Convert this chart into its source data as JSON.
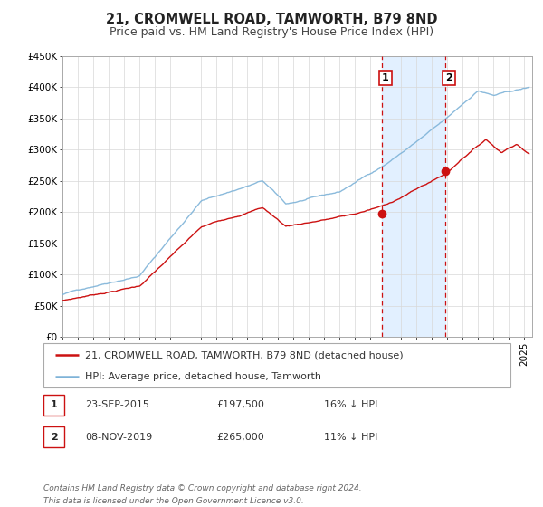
{
  "title": "21, CROMWELL ROAD, TAMWORTH, B79 8ND",
  "subtitle": "Price paid vs. HM Land Registry's House Price Index (HPI)",
  "ylim": [
    0,
    450000
  ],
  "yticks": [
    0,
    50000,
    100000,
    150000,
    200000,
    250000,
    300000,
    350000,
    400000,
    450000
  ],
  "ytick_labels": [
    "£0",
    "£50K",
    "£100K",
    "£150K",
    "£200K",
    "£250K",
    "£300K",
    "£350K",
    "£400K",
    "£450K"
  ],
  "xlim_start": 1995.0,
  "xlim_end": 2025.5,
  "hpi_color": "#7eb3d8",
  "price_color": "#cc1111",
  "marker_color": "#cc1111",
  "grid_color": "#d8d8d8",
  "bg_color": "#ffffff",
  "shade_color": "#ddeeff",
  "vline_color": "#cc1111",
  "marker1_x": 2015.73,
  "marker1_y": 197500,
  "marker2_x": 2019.86,
  "marker2_y": 265000,
  "legend_label_price": "21, CROMWELL ROAD, TAMWORTH, B79 8ND (detached house)",
  "legend_label_hpi": "HPI: Average price, detached house, Tamworth",
  "table_row1": [
    "1",
    "23-SEP-2015",
    "£197,500",
    "16% ↓ HPI"
  ],
  "table_row2": [
    "2",
    "08-NOV-2019",
    "£265,000",
    "11% ↓ HPI"
  ],
  "footnote1": "Contains HM Land Registry data © Crown copyright and database right 2024.",
  "footnote2": "This data is licensed under the Open Government Licence v3.0.",
  "title_fontsize": 10.5,
  "subtitle_fontsize": 9,
  "tick_fontsize": 7.5,
  "legend_fontsize": 8,
  "table_fontsize": 8,
  "footnote_fontsize": 6.5
}
